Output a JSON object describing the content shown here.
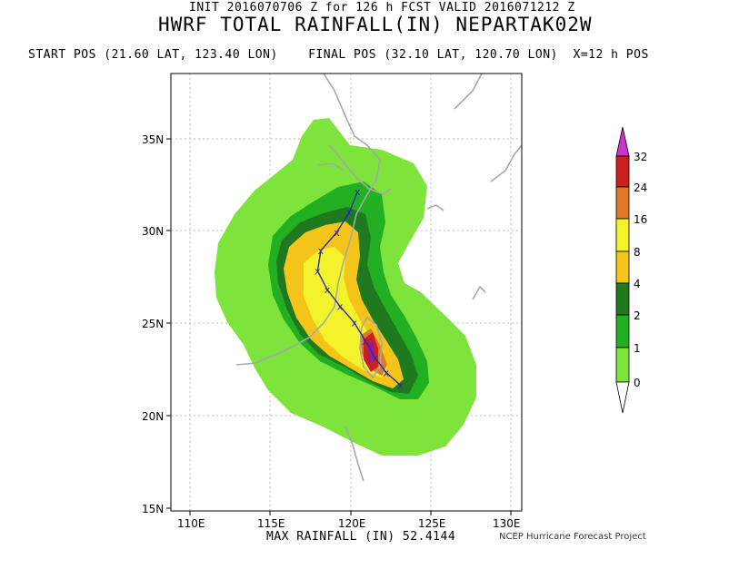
{
  "header": {
    "init_line": "INIT 2016070706 Z for 126 h FCST VALID 2016071212 Z",
    "title": "HWRF TOTAL RAINFALL(IN) NEPARTAK02W",
    "pos_line": "START POS (21.60 LAT, 123.40 LON)    FINAL POS (32.10 LAT, 120.70 LON)  X=12 h POS"
  },
  "map": {
    "lat_labels": [
      "35N",
      "30N",
      "25N",
      "20N",
      "15N"
    ],
    "lon_labels": [
      "110E",
      "115E",
      "120E",
      "125E",
      "130E"
    ],
    "lat_range": [
      14.8,
      38.5
    ],
    "lon_range": [
      109.0,
      131.0
    ],
    "track_marker": "x",
    "track_points": [
      {
        "lat": 21.6,
        "lon": 123.4
      },
      {
        "lat": 22.3,
        "lon": 122.5
      },
      {
        "lat": 23.1,
        "lon": 121.8
      },
      {
        "lat": 24.0,
        "lon": 121.2
      },
      {
        "lat": 25.0,
        "lon": 120.5
      },
      {
        "lat": 25.9,
        "lon": 119.6
      },
      {
        "lat": 26.8,
        "lon": 118.8
      },
      {
        "lat": 27.8,
        "lon": 118.2
      },
      {
        "lat": 28.9,
        "lon": 118.4
      },
      {
        "lat": 29.9,
        "lon": 119.4
      },
      {
        "lat": 31.0,
        "lon": 120.2
      },
      {
        "lat": 32.1,
        "lon": 120.7
      }
    ]
  },
  "legend": {
    "levels": [
      "32",
      "24",
      "16",
      "8",
      "4",
      "2",
      "1",
      "0"
    ],
    "colors": [
      "#cc1f1f",
      "#e0782a",
      "#f3f32c",
      "#f5c418",
      "#1f7a1f",
      "#22b022",
      "#7ee33a",
      "#ffffff"
    ],
    "top_color": "#cc33cc"
  },
  "footer": {
    "max_rainfall": "MAX RAINFALL (IN) 52.4144",
    "credit": "NCEP Hurricane Forecast Project"
  }
}
